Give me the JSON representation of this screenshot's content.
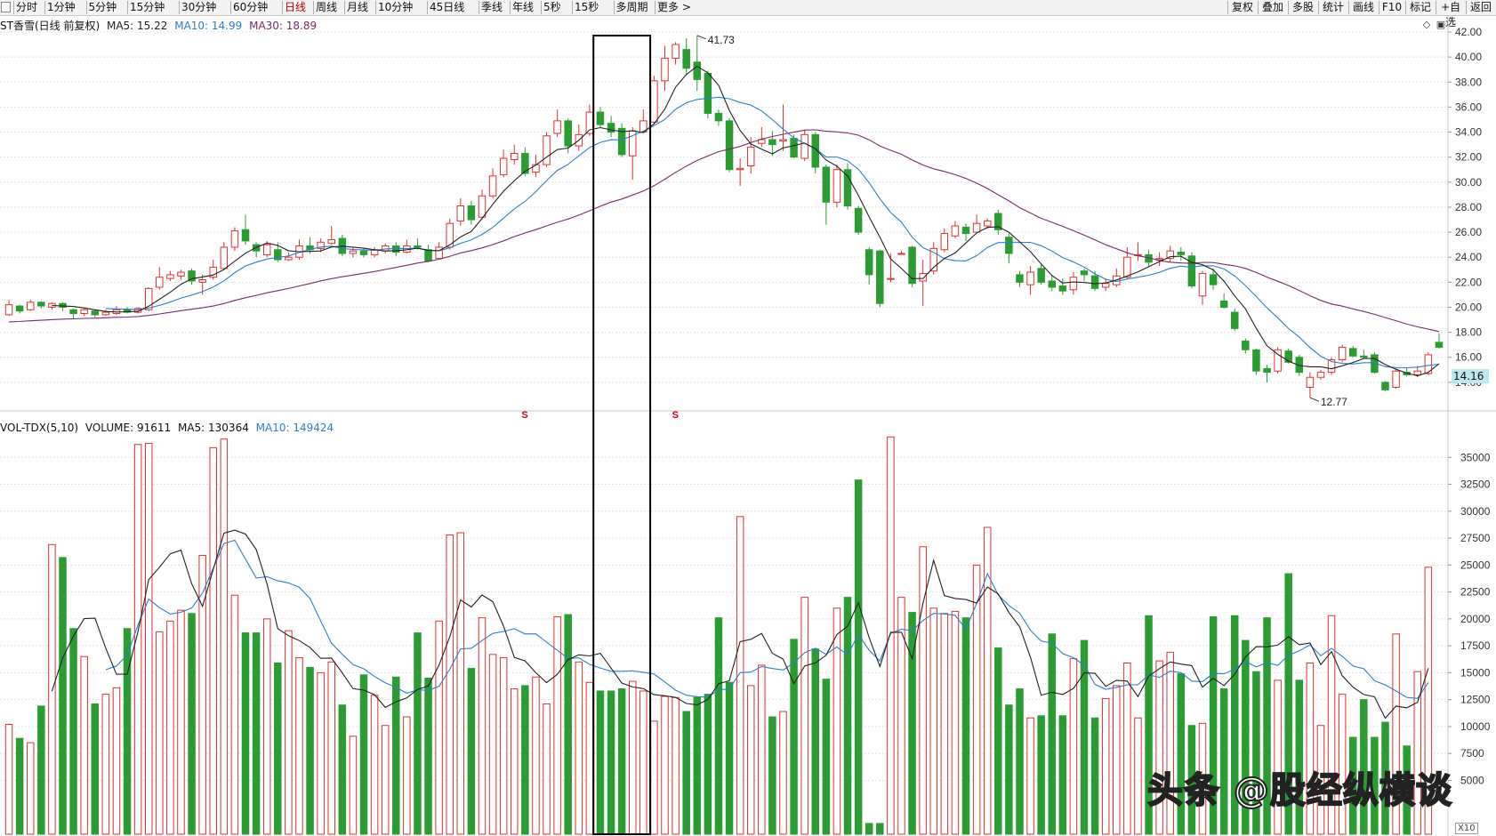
{
  "toolbar": {
    "periods": [
      {
        "label": "分时",
        "active": false
      },
      {
        "label": "1分钟",
        "active": false
      },
      {
        "label": "5分钟",
        "active": false
      },
      {
        "label": "15分钟",
        "active": false
      },
      {
        "label": "30分钟",
        "active": false
      },
      {
        "label": "60分钟",
        "active": false
      },
      {
        "label": "日线",
        "active": true
      },
      {
        "label": "周线",
        "active": false
      },
      {
        "label": "月线",
        "active": false
      },
      {
        "label": "10分钟",
        "active": false
      },
      {
        "label": "45日线",
        "active": false
      },
      {
        "label": "季线",
        "active": false
      },
      {
        "label": "年线",
        "active": false
      },
      {
        "label": "5秒",
        "active": false
      },
      {
        "label": "15秒",
        "active": false
      },
      {
        "label": "多周期",
        "active": false
      },
      {
        "label": "更多 >",
        "active": false
      }
    ],
    "right_buttons": [
      "复权",
      "叠加",
      "多股",
      "统计",
      "画线",
      "F10",
      "标记",
      "+自选",
      "返回"
    ]
  },
  "price_panel": {
    "title": "ST香雪(日线 前复权)",
    "ma5_label": "MA5: 15.22",
    "ma10_label": "MA10: 14.99",
    "ma30_label": "MA30: 18.89",
    "high_marker": "41.73",
    "low_marker": "12.77",
    "current_price": "14.16",
    "dividend_marks": [
      "S",
      "S"
    ]
  },
  "volume_panel": {
    "title": "VOL-TDX(5,10)",
    "volume_label": "VOLUME: 91611",
    "ma5_label": "MA5: 130364",
    "ma10_label": "MA10: 149424"
  },
  "watermark": "头条 @股经纵横谈",
  "zoom_label": "X10",
  "colors": {
    "up": "#e0312e",
    "down": "#2a9c32",
    "ma5": "#222222",
    "ma10": "#2a7fcf",
    "ma30": "#7a2a6a",
    "highlight_box": "#000000",
    "price_tag_bg": "#bde8ef"
  },
  "chart_data": {
    "type": "candlestick",
    "price_axis": {
      "min": 12,
      "max": 42,
      "ticks": [
        "14.00",
        "16.00",
        "18.00",
        "20.00",
        "22.00",
        "24.00",
        "26.00",
        "28.00",
        "30.00",
        "32.00",
        "34.00",
        "36.00",
        "38.00",
        "40.00",
        "42.00"
      ]
    },
    "volume_axis": {
      "min": 0,
      "max": 37500,
      "ticks": [
        "5000",
        "7500",
        "10000",
        "12500",
        "15000",
        "17500",
        "20000",
        "22500",
        "25000",
        "27500",
        "30000",
        "32500",
        "35000"
      ]
    },
    "candles": [
      [
        19.4,
        20.2,
        20.6,
        19.3
      ],
      [
        20.1,
        19.7,
        20.2,
        19.5
      ],
      [
        19.8,
        20.4,
        20.6,
        19.7
      ],
      [
        20.4,
        20.1,
        20.5,
        19.9
      ],
      [
        20.0,
        20.3,
        20.4,
        19.8
      ],
      [
        20.3,
        20.0,
        20.4,
        19.7
      ],
      [
        19.8,
        19.5,
        19.9,
        19.1
      ],
      [
        19.5,
        19.8,
        19.9,
        19.3
      ],
      [
        19.7,
        19.4,
        19.8,
        19.2
      ],
      [
        19.4,
        19.6,
        19.8,
        19.3
      ],
      [
        19.5,
        19.8,
        20.1,
        19.4
      ],
      [
        19.8,
        19.6,
        20.0,
        19.5
      ],
      [
        19.6,
        19.9,
        20.0,
        19.5
      ],
      [
        19.8,
        21.5,
        21.6,
        19.7
      ],
      [
        21.6,
        22.4,
        23.2,
        21.4
      ],
      [
        22.3,
        22.6,
        22.9,
        22.1
      ],
      [
        22.5,
        22.8,
        23.0,
        22.2
      ],
      [
        22.9,
        22.1,
        23.1,
        21.8
      ],
      [
        22.0,
        22.2,
        22.6,
        21.0
      ],
      [
        22.4,
        23.2,
        23.8,
        22.2
      ],
      [
        23.1,
        24.8,
        25.2,
        23.0
      ],
      [
        24.8,
        26.1,
        26.4,
        24.5
      ],
      [
        26.2,
        25.3,
        27.4,
        25.0
      ],
      [
        25.0,
        24.5,
        25.2,
        24.0
      ],
      [
        24.2,
        25.0,
        25.3,
        24.0
      ],
      [
        24.6,
        23.8,
        25.2,
        23.6
      ],
      [
        23.8,
        24.0,
        24.4,
        23.7
      ],
      [
        24.0,
        24.9,
        25.4,
        23.8
      ],
      [
        24.9,
        24.6,
        25.6,
        24.3
      ],
      [
        24.7,
        25.2,
        25.5,
        24.4
      ],
      [
        25.1,
        25.4,
        26.5,
        25.0
      ],
      [
        25.5,
        24.3,
        25.8,
        24.1
      ],
      [
        24.3,
        24.5,
        24.8,
        24.0
      ],
      [
        24.5,
        24.2,
        24.7,
        24.0
      ],
      [
        24.2,
        24.6,
        24.8,
        24.0
      ],
      [
        24.5,
        24.9,
        25.1,
        24.3
      ],
      [
        24.9,
        24.4,
        25.2,
        24.1
      ],
      [
        24.4,
        24.9,
        25.4,
        24.3
      ],
      [
        24.9,
        24.8,
        25.5,
        24.6
      ],
      [
        24.6,
        23.7,
        25.0,
        23.6
      ],
      [
        23.9,
        24.8,
        25.2,
        23.8
      ],
      [
        24.8,
        26.7,
        27.1,
        24.6
      ],
      [
        26.9,
        28.1,
        28.7,
        26.5
      ],
      [
        28.1,
        27.0,
        28.5,
        26.6
      ],
      [
        27.2,
        28.9,
        29.4,
        27.0
      ],
      [
        28.9,
        30.5,
        31.1,
        28.7
      ],
      [
        30.6,
        31.9,
        32.6,
        30.4
      ],
      [
        31.8,
        32.3,
        33.0,
        31.4
      ],
      [
        32.3,
        30.7,
        32.8,
        30.5
      ],
      [
        30.8,
        31.4,
        32.2,
        30.4
      ],
      [
        31.4,
        33.7,
        34.0,
        31.2
      ],
      [
        33.9,
        34.9,
        35.8,
        33.6
      ],
      [
        34.9,
        32.9,
        35.1,
        32.3
      ],
      [
        32.9,
        33.8,
        34.6,
        32.5
      ],
      [
        33.9,
        35.6,
        36.2,
        33.7
      ],
      [
        35.6,
        34.6,
        36.0,
        34.4
      ],
      [
        34.7,
        34.0,
        35.3,
        33.6
      ],
      [
        34.3,
        32.2,
        34.7,
        32.0
      ],
      [
        32.1,
        34.1,
        34.4,
        30.2
      ],
      [
        34.0,
        34.9,
        35.8,
        33.9
      ],
      [
        34.8,
        38.1,
        38.5,
        34.7
      ],
      [
        38.1,
        39.9,
        40.9,
        37.3
      ],
      [
        39.9,
        41.0,
        41.2,
        39.4
      ],
      [
        40.6,
        39.1,
        41.5,
        38.6
      ],
      [
        39.6,
        38.2,
        41.73,
        37.3
      ],
      [
        38.7,
        35.5,
        38.9,
        35.1
      ],
      [
        35.5,
        34.9,
        35.8,
        34.5
      ],
      [
        34.9,
        31.0,
        35.1,
        30.8
      ],
      [
        31.0,
        31.1,
        31.9,
        29.7
      ],
      [
        31.3,
        32.8,
        33.6,
        30.7
      ],
      [
        33.1,
        33.4,
        34.4,
        32.8
      ],
      [
        33.4,
        33.0,
        34.1,
        32.1
      ],
      [
        33.3,
        33.4,
        36.2,
        32.5
      ],
      [
        33.5,
        32.0,
        33.8,
        31.9
      ],
      [
        31.9,
        33.8,
        34.2,
        31.7
      ],
      [
        33.8,
        31.2,
        34.0,
        30.7
      ],
      [
        31.2,
        28.4,
        31.4,
        26.6
      ],
      [
        28.4,
        31.0,
        31.4,
        28.0
      ],
      [
        31.0,
        28.1,
        31.5,
        27.8
      ],
      [
        27.9,
        26.0,
        28.1,
        25.8
      ],
      [
        24.6,
        22.6,
        24.8,
        21.8
      ],
      [
        24.5,
        20.3,
        24.6,
        20.0
      ],
      [
        22.3,
        22.3,
        24.3,
        22.0
      ],
      [
        24.3,
        24.3,
        24.5,
        24.2
      ],
      [
        24.8,
        21.9,
        24.9,
        21.6
      ],
      [
        22.1,
        22.7,
        23.8,
        20.1
      ],
      [
        22.9,
        24.7,
        25.2,
        22.6
      ],
      [
        24.6,
        25.9,
        26.3,
        24.4
      ],
      [
        25.7,
        26.5,
        26.9,
        25.5
      ],
      [
        26.4,
        25.9,
        26.7,
        25.3
      ],
      [
        26.0,
        26.7,
        27.4,
        25.9
      ],
      [
        26.5,
        26.9,
        27.1,
        26.3
      ],
      [
        27.5,
        26.2,
        27.8,
        25.8
      ],
      [
        25.6,
        24.3,
        25.9,
        23.5
      ],
      [
        22.6,
        22.0,
        22.9,
        21.6
      ],
      [
        21.8,
        22.8,
        23.3,
        21.0
      ],
      [
        23.1,
        22.0,
        23.4,
        21.8
      ],
      [
        22.1,
        21.6,
        22.5,
        21.3
      ],
      [
        21.7,
        21.3,
        22.3,
        21.0
      ],
      [
        21.4,
        22.4,
        22.8,
        21.0
      ],
      [
        22.9,
        22.6,
        23.1,
        22.1
      ],
      [
        22.5,
        21.5,
        22.9,
        21.3
      ],
      [
        21.6,
        21.9,
        22.3,
        21.3
      ],
      [
        21.8,
        22.5,
        23.1,
        21.6
      ],
      [
        22.4,
        24.0,
        24.8,
        22.3
      ],
      [
        24.2,
        24.2,
        25.2,
        23.7
      ],
      [
        24.2,
        23.6,
        24.6,
        23.3
      ],
      [
        23.8,
        23.9,
        24.4,
        23.3
      ],
      [
        23.9,
        24.5,
        24.9,
        23.6
      ],
      [
        24.4,
        24.2,
        24.8,
        23.7
      ],
      [
        24.1,
        21.7,
        24.4,
        21.5
      ],
      [
        20.9,
        22.7,
        22.9,
        20.2
      ],
      [
        22.6,
        21.8,
        23.1,
        21.4
      ],
      [
        20.5,
        20.0,
        21.1,
        19.9
      ],
      [
        19.6,
        18.3,
        19.9,
        18.1
      ],
      [
        17.3,
        16.6,
        17.5,
        16.3
      ],
      [
        16.6,
        14.9,
        16.7,
        14.6
      ],
      [
        15.1,
        14.8,
        15.4,
        14.0
      ],
      [
        14.9,
        16.6,
        16.8,
        14.7
      ],
      [
        16.5,
        15.6,
        16.7,
        15.5
      ],
      [
        16.0,
        14.8,
        16.2,
        14.5
      ],
      [
        13.6,
        14.4,
        14.8,
        12.77
      ],
      [
        14.4,
        14.8,
        15.0,
        14.2
      ],
      [
        14.8,
        15.8,
        16.0,
        14.6
      ],
      [
        15.8,
        16.8,
        17.0,
        15.6
      ],
      [
        16.7,
        16.1,
        16.9,
        16.0
      ],
      [
        16.1,
        16.0,
        16.6,
        15.9
      ],
      [
        16.2,
        14.8,
        16.4,
        14.7
      ],
      [
        14.0,
        13.4,
        14.1,
        13.3
      ],
      [
        13.6,
        14.9,
        15.1,
        13.5
      ],
      [
        14.8,
        14.6,
        15.2,
        14.5
      ],
      [
        14.6,
        14.9,
        15.3,
        14.4
      ],
      [
        14.7,
        16.2,
        16.4,
        14.6
      ],
      [
        17.2,
        16.8,
        17.9,
        16.7
      ]
    ],
    "volumes": [
      10200,
      8900,
      8500,
      11900,
      26900,
      25700,
      19100,
      16500,
      12100,
      13000,
      13600,
      19100,
      36200,
      36300,
      18800,
      19800,
      20800,
      20500,
      25900,
      35900,
      36700,
      22200,
      18700,
      18700,
      20000,
      15900,
      18900,
      16400,
      15500,
      15000,
      16000,
      12000,
      9100,
      14800,
      12900,
      10100,
      14600,
      10900,
      18700,
      14500,
      19800,
      27800,
      28000,
      15400,
      20100,
      16700,
      16400,
      13500,
      13800,
      14600,
      12100,
      20200,
      20400,
      16000,
      14100,
      13300,
      13300,
      13500,
      14200,
      13300,
      10500,
      12800,
      12700,
      11400,
      12700,
      13000,
      20100,
      14100,
      29500,
      13800,
      15700,
      10900,
      11400,
      18100,
      22000,
      17200,
      14400,
      21000,
      22000,
      32900,
      1000,
      1000,
      36900,
      22000,
      20600,
      26700,
      21000,
      20500,
      20700,
      20100,
      25000,
      28500,
      17300,
      12000,
      13500,
      10800,
      11000,
      18600,
      11000,
      16300,
      18000,
      10800,
      12600,
      13800,
      15900,
      10800,
      20300,
      16100,
      16900,
      14900,
      10100,
      10300,
      20200,
      13500,
      20300,
      18000,
      15100,
      20100,
      14300,
      24200,
      14300,
      15900,
      10100,
      20300,
      13000,
      9000,
      12500,
      9000,
      10400,
      18600,
      8200,
      15100,
      24800
    ],
    "ma5": "computed",
    "ma10": "computed",
    "ma30": "computed"
  }
}
